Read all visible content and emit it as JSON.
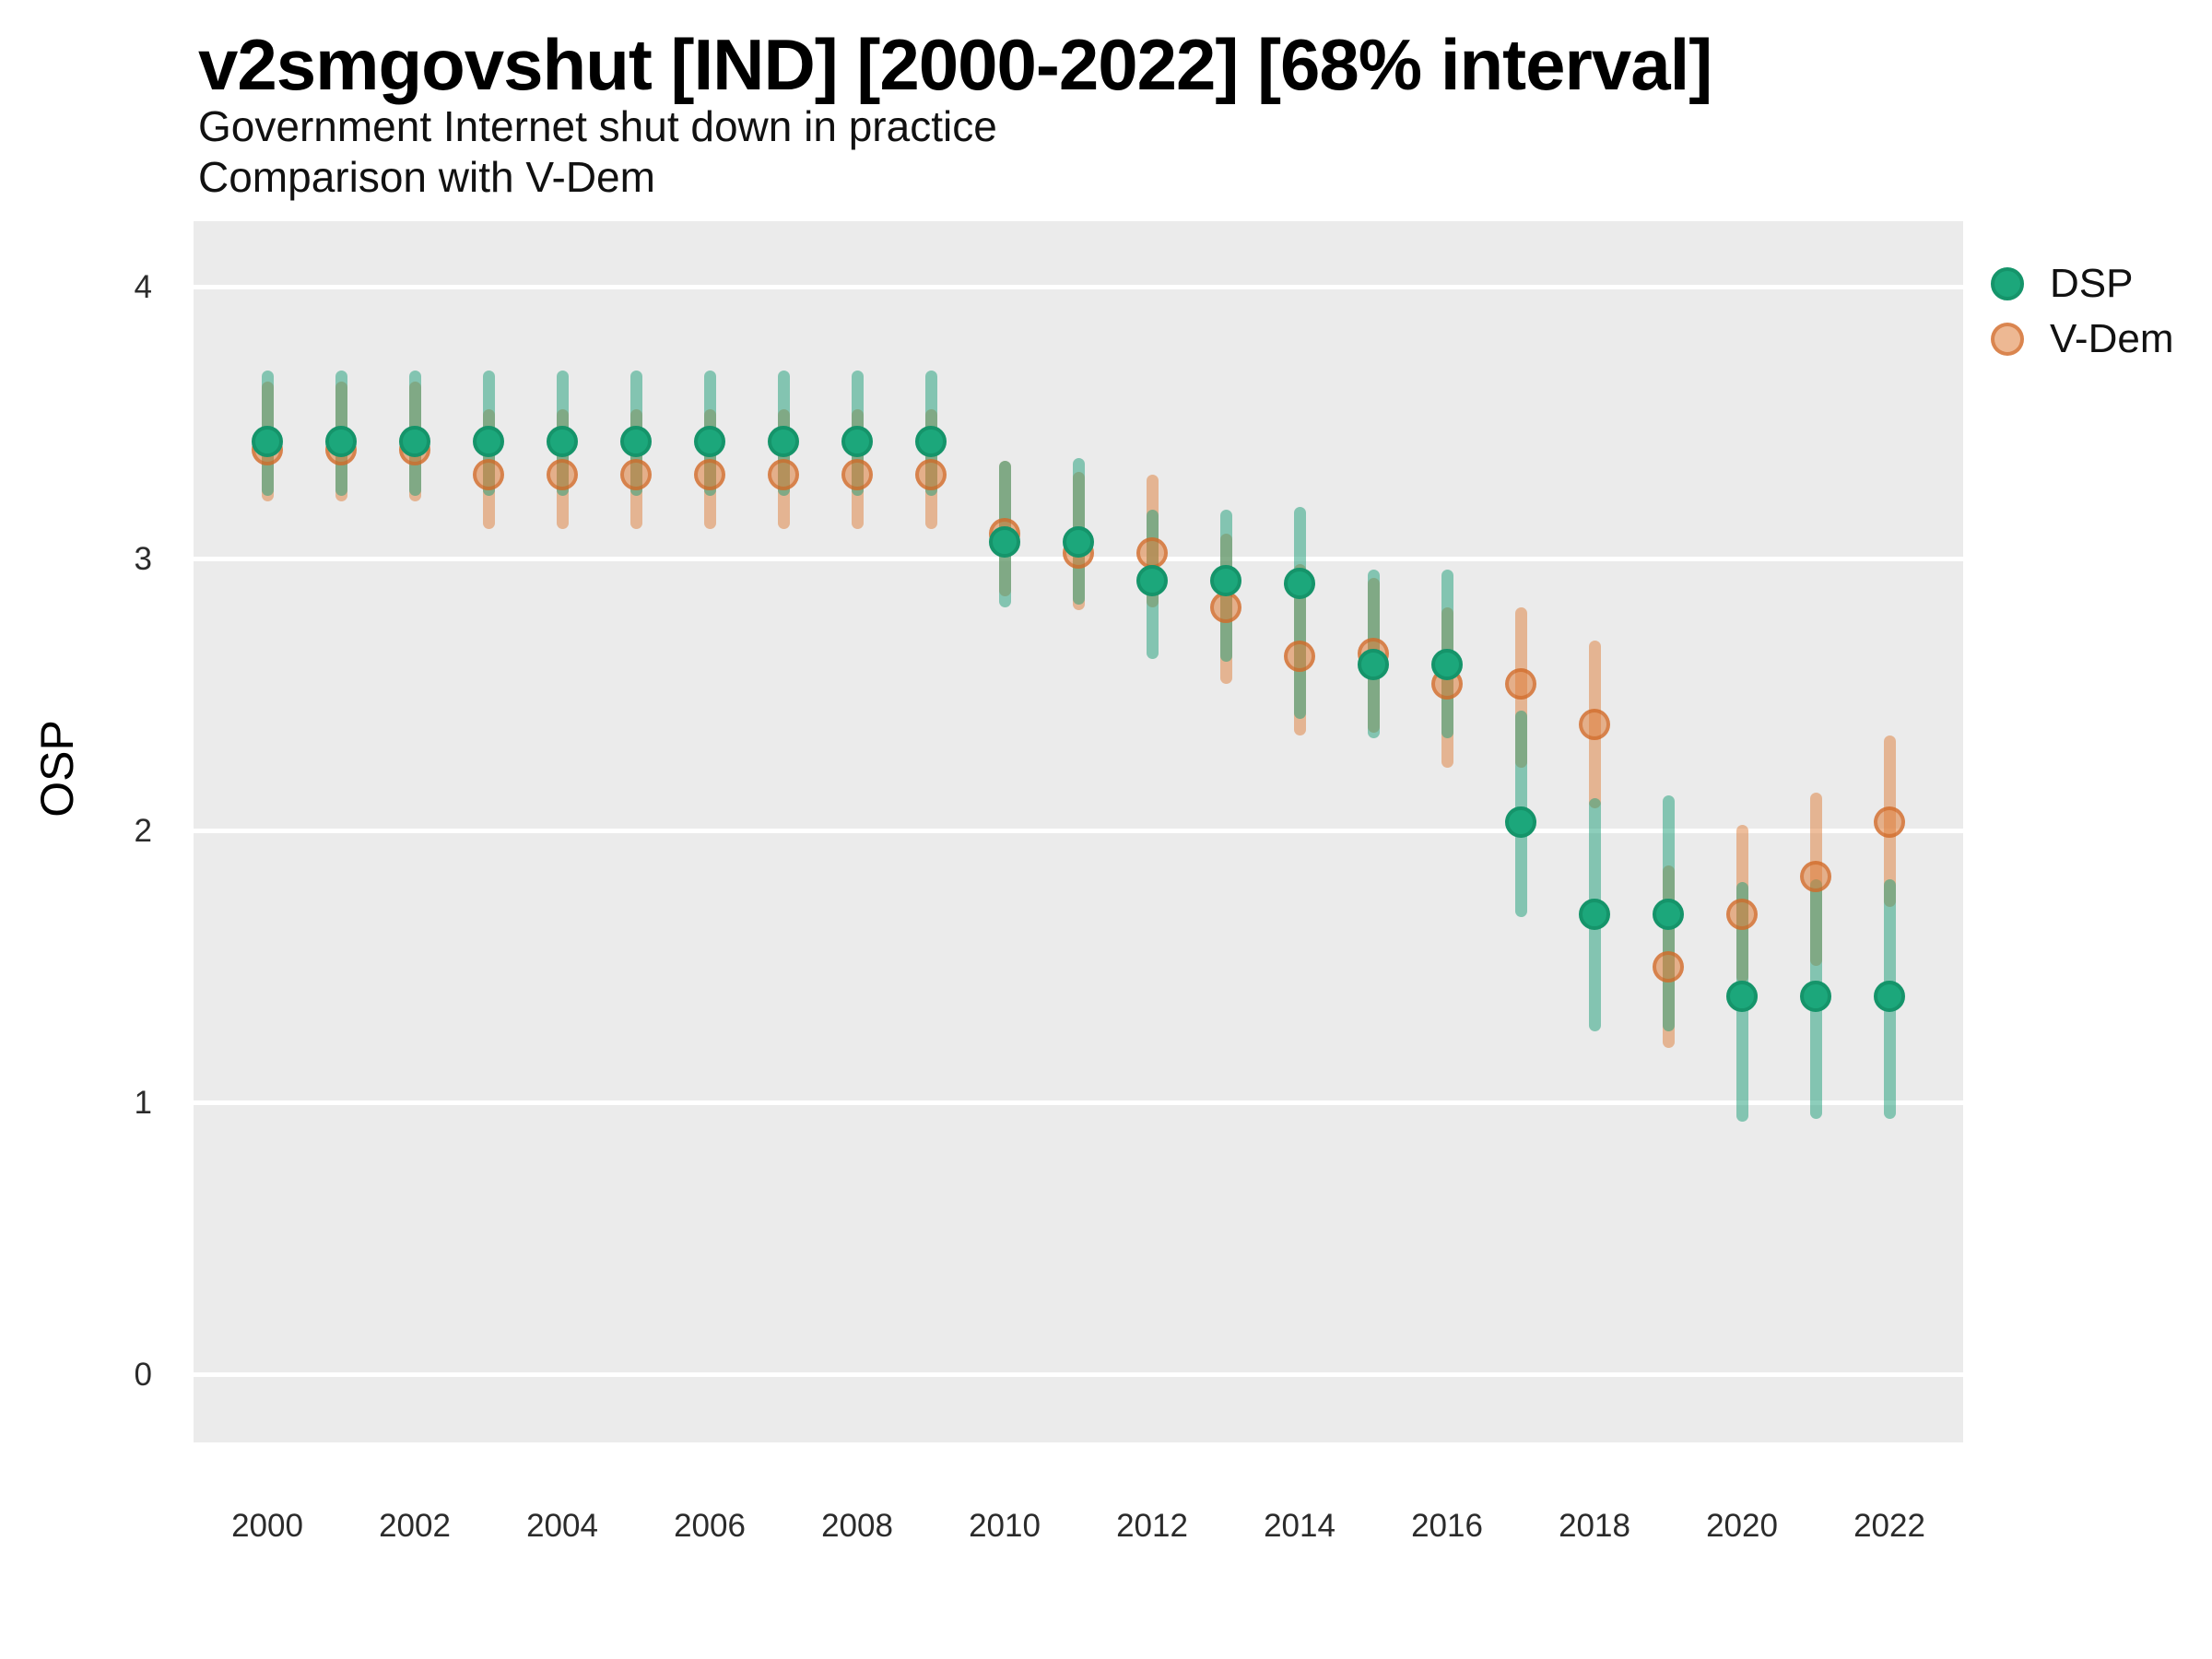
{
  "header": {
    "title": "v2smgovshut [IND] [2000-2022] [68% interval]",
    "subtitle1": "Government Internet shut down in practice",
    "subtitle2": "Comparison with V-Dem"
  },
  "y_axis": {
    "label": "OSP",
    "tick_labels": [
      "0",
      "1",
      "2",
      "3",
      "4"
    ],
    "tick_values": [
      0,
      1,
      2,
      3,
      4
    ]
  },
  "x_axis": {
    "tick_labels": [
      "2000",
      "2002",
      "2004",
      "2006",
      "2008",
      "2010",
      "2012",
      "2014",
      "2016",
      "2018",
      "2020",
      "2022"
    ],
    "tick_values": [
      2000,
      2002,
      2004,
      2006,
      2008,
      2010,
      2012,
      2014,
      2016,
      2018,
      2020,
      2022
    ]
  },
  "legend": {
    "items": [
      {
        "label": "DSP",
        "color": "#1ca77b"
      },
      {
        "label": "V-Dem",
        "color": "#eab astray"
      }
    ]
  },
  "colors": {
    "panel_background": "#ebebeb",
    "gridline": "#ffffff",
    "dsp_dot_fill": "#1ca77b",
    "dsp_dot_border": "#15946a",
    "dsp_bar": "rgba(27,158,119,0.5)",
    "vdem_dot_fill": "rgba(222,126,58,0.55)",
    "vdem_dot_border": "rgba(205,100,35,0.6)",
    "vdem_bar": "rgba(222,126,58,0.5)"
  },
  "chart_data": {
    "type": "scatter",
    "subtype": "pointrange-errorbar",
    "title": "v2smgovshut [IND] [2000-2022] [68% interval]",
    "xlabel": "",
    "ylabel": "OSP",
    "ylim": [
      -0.25,
      4.25
    ],
    "xlim": [
      1999,
      2023
    ],
    "grid": "horizontal-major-white-on-gray",
    "legend_position": "right-top",
    "interval": "68%",
    "x": [
      2000,
      2001,
      2002,
      2003,
      2004,
      2005,
      2006,
      2007,
      2008,
      2009,
      2010,
      2011,
      2012,
      2013,
      2014,
      2015,
      2016,
      2017,
      2018,
      2019,
      2020,
      2021,
      2022
    ],
    "series": [
      {
        "name": "V-Dem",
        "values": [
          3.4,
          3.4,
          3.4,
          3.31,
          3.31,
          3.31,
          3.31,
          3.31,
          3.31,
          3.31,
          3.09,
          3.02,
          3.02,
          2.82,
          2.64,
          2.65,
          2.54,
          2.54,
          2.39,
          1.5,
          1.69,
          1.83,
          2.03
        ],
        "lo": [
          3.21,
          3.21,
          3.21,
          3.11,
          3.11,
          3.11,
          3.11,
          3.11,
          3.11,
          3.11,
          2.86,
          2.81,
          2.82,
          2.54,
          2.35,
          2.36,
          2.23,
          2.23,
          2.08,
          1.2,
          1.44,
          1.5,
          1.72
        ],
        "hi": [
          3.65,
          3.65,
          3.65,
          3.55,
          3.55,
          3.55,
          3.55,
          3.55,
          3.55,
          3.55,
          3.36,
          3.32,
          3.31,
          3.09,
          2.98,
          2.93,
          2.82,
          2.82,
          2.7,
          1.87,
          2.02,
          2.14,
          2.35
        ]
      },
      {
        "name": "DSP",
        "values": [
          3.43,
          3.43,
          3.43,
          3.43,
          3.43,
          3.43,
          3.43,
          3.43,
          3.43,
          3.43,
          3.06,
          3.06,
          2.92,
          2.92,
          2.91,
          2.61,
          2.61,
          2.03,
          1.69,
          1.69,
          1.39,
          1.39,
          1.39
        ],
        "lo": [
          3.23,
          3.23,
          3.23,
          3.23,
          3.23,
          3.23,
          3.23,
          3.23,
          3.23,
          3.23,
          2.82,
          2.83,
          2.63,
          2.62,
          2.41,
          2.34,
          2.34,
          1.68,
          1.26,
          1.26,
          0.93,
          0.94,
          0.94
        ],
        "hi": [
          3.69,
          3.69,
          3.69,
          3.69,
          3.69,
          3.69,
          3.69,
          3.69,
          3.69,
          3.69,
          3.36,
          3.37,
          3.18,
          3.18,
          3.19,
          2.96,
          2.96,
          2.44,
          2.12,
          2.13,
          1.81,
          1.82,
          1.82
        ]
      }
    ]
  }
}
